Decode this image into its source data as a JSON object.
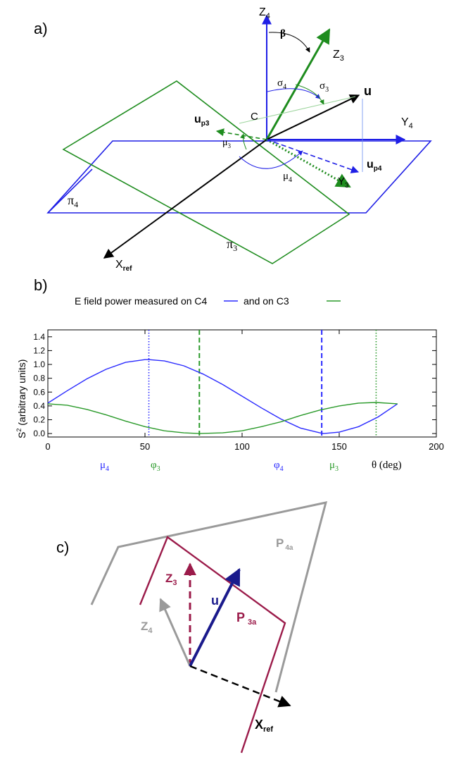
{
  "panel_a": {
    "label": "a)",
    "z4": "Z",
    "z4_sub": "4",
    "z3": "Z",
    "z3_sub": "3",
    "y4": "Y",
    "y4_sub": "4",
    "y3": "Y",
    "y3_sub": "3",
    "xref": "X",
    "xref_sub": "ref",
    "u": "u",
    "up3": "u",
    "up3_sub": "p3",
    "up4": "u",
    "up4_sub": "p4",
    "beta": "β",
    "sigma4": "σ",
    "sigma4_sub": "4",
    "sigma3": "σ",
    "sigma3_sub": "3",
    "c": "C",
    "mu3": "μ",
    "mu3_sub": "3",
    "mu4": "μ",
    "mu4_sub": "4",
    "pi4": "π",
    "pi4_sub": "4",
    "pi3": "π",
    "pi3_sub": "3",
    "colors": {
      "blue": "#1f1fe6",
      "green": "#1e8c1e",
      "black": "#000000"
    }
  },
  "panel_b": {
    "label": "b)",
    "legend_text_1": "E field power measured on C4",
    "legend_text_2": "and on C3",
    "ylabel": "S",
    "ylabel_sup": "2",
    "ylabel_rest": " (arbitrary units)",
    "marker_mu4": "μ",
    "marker_mu4_sub": "4",
    "marker_phi3": "φ",
    "marker_phi3_sub": "3",
    "marker_phi4": "φ",
    "marker_phi4_sub": "4",
    "marker_mu3": "μ",
    "marker_mu3_sub": "3",
    "xlabel": "θ (deg)"
  },
  "panel_c": {
    "label": "c)",
    "z3": "Z",
    "z3_sub": "3",
    "z4": "Z",
    "z4_sub": "4",
    "u": "u",
    "p3a": "P",
    "p3a_sub": "3a",
    "p4a": "P",
    "p4a_sub": "4a",
    "xref": "X",
    "xref_sub": "ref",
    "colors": {
      "crimson": "#9b1b4a",
      "gray": "#9a9a9a",
      "navy": "#1a1a8c",
      "black": "#000000"
    }
  },
  "chart_data": {
    "type": "line",
    "xlim": [
      0,
      200
    ],
    "ylim": [
      -0.05,
      1.5
    ],
    "x_ticks": [
      0,
      50,
      100,
      150,
      200
    ],
    "y_ticks": [
      0.0,
      0.2,
      0.4,
      0.6,
      0.8,
      1.0,
      1.2,
      1.4
    ],
    "x_tick_labels": [
      "0",
      "50",
      "100",
      "150",
      "200"
    ],
    "y_tick_labels": [
      "0.0",
      "0.2",
      "0.4",
      "0.6",
      "0.8",
      "1.0",
      "1.2",
      "1.4"
    ],
    "series": [
      {
        "name": "C4",
        "color": "#2a2aff",
        "x": [
          0,
          10,
          20,
          30,
          40,
          50,
          52,
          60,
          70,
          80,
          90,
          100,
          110,
          120,
          130,
          140,
          142,
          150,
          160,
          170,
          180
        ],
        "y": [
          0.44,
          0.62,
          0.79,
          0.93,
          1.03,
          1.07,
          1.07,
          1.05,
          0.98,
          0.86,
          0.71,
          0.54,
          0.37,
          0.21,
          0.08,
          0.01,
          0.0,
          0.02,
          0.1,
          0.24,
          0.43
        ]
      },
      {
        "name": "C3",
        "color": "#2a9a2a",
        "x": [
          0,
          10,
          20,
          30,
          40,
          50,
          60,
          70,
          78,
          90,
          100,
          110,
          120,
          130,
          140,
          150,
          160,
          169,
          180
        ],
        "y": [
          0.43,
          0.41,
          0.35,
          0.27,
          0.18,
          0.1,
          0.04,
          0.01,
          0.0,
          0.01,
          0.04,
          0.1,
          0.17,
          0.26,
          0.34,
          0.4,
          0.44,
          0.45,
          0.43
        ]
      }
    ],
    "markers": [
      {
        "x": 52,
        "color": "#2a2aff",
        "style": "dotted"
      },
      {
        "x": 78,
        "color": "#2a9a2a",
        "style": "dashed"
      },
      {
        "x": 141,
        "color": "#2a2aff",
        "style": "dashed"
      },
      {
        "x": 169,
        "color": "#2a9a2a",
        "style": "dotted"
      }
    ],
    "grid": false
  }
}
